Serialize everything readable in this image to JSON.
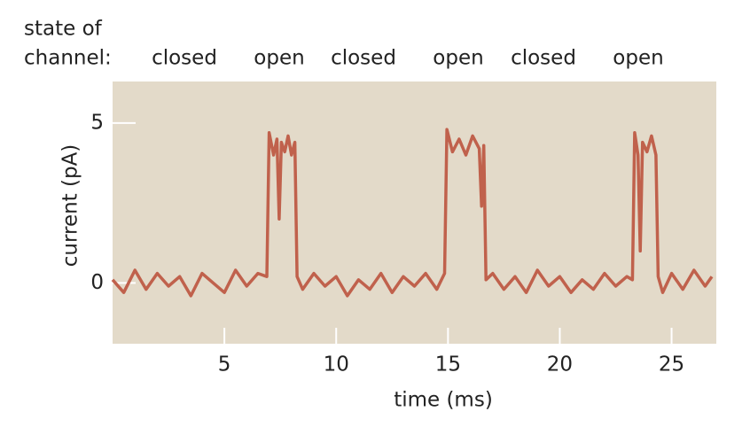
{
  "chart_data": {
    "type": "line",
    "state_label": [
      "state of",
      "channel:"
    ],
    "states": [
      "closed",
      "open",
      "closed",
      "open",
      "closed",
      "open"
    ],
    "x_label": "time (ms)",
    "y_label": "current (pA)",
    "xlim": [
      0,
      27
    ],
    "ylim": [
      -1.9,
      6.3
    ],
    "xticks": [
      5,
      10,
      15,
      20,
      25
    ],
    "yticks": [
      0,
      5
    ],
    "background": "#e3dac9",
    "color": "#c0614c",
    "x": [
      0,
      0.5,
      1,
      1.5,
      2,
      2.5,
      3,
      3.5,
      4,
      4.5,
      5,
      5.5,
      6,
      6.5,
      6.9,
      7.0,
      7.2,
      7.35,
      7.45,
      7.55,
      7.7,
      7.85,
      8.0,
      8.15,
      8.25,
      8.5,
      9,
      9.5,
      10,
      10.5,
      11,
      11.5,
      12,
      12.5,
      13,
      13.5,
      14,
      14.5,
      14.85,
      14.95,
      15.2,
      15.5,
      15.8,
      16.1,
      16.4,
      16.5,
      16.6,
      16.7,
      17,
      17.5,
      18,
      18.5,
      19,
      19.5,
      20,
      20.5,
      21,
      21.5,
      22,
      22.5,
      23,
      23.25,
      23.35,
      23.5,
      23.6,
      23.7,
      23.9,
      24.1,
      24.3,
      24.4,
      24.6,
      25,
      25.5,
      26,
      26.5,
      26.8
    ],
    "values": [
      0.1,
      -0.3,
      0.4,
      -0.2,
      0.3,
      -0.1,
      0.2,
      -0.4,
      0.3,
      0,
      -0.3,
      0.4,
      -0.1,
      0.3,
      0.2,
      4.7,
      4.0,
      4.5,
      2.0,
      4.4,
      4.1,
      4.6,
      4.0,
      4.4,
      0.2,
      -0.2,
      0.3,
      -0.1,
      0.2,
      -0.4,
      0.1,
      -0.2,
      0.3,
      -0.3,
      0.2,
      -0.1,
      0.3,
      -0.2,
      0.3,
      4.8,
      4.1,
      4.5,
      4.0,
      4.6,
      4.2,
      2.4,
      4.3,
      0.1,
      0.3,
      -0.2,
      0.2,
      -0.3,
      0.4,
      -0.1,
      0.2,
      -0.3,
      0.1,
      -0.2,
      0.3,
      -0.1,
      0.2,
      0.1,
      4.7,
      4.0,
      1.0,
      4.4,
      4.1,
      4.6,
      4.0,
      0.2,
      -0.3,
      0.3,
      -0.2,
      0.4,
      -0.1,
      0.2
    ]
  }
}
